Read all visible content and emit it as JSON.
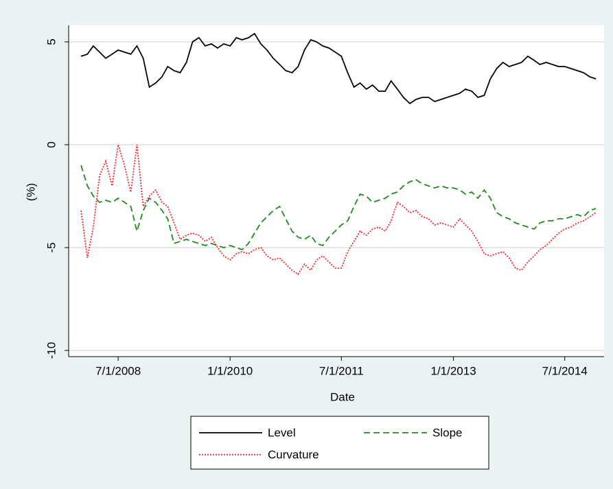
{
  "chart_data": {
    "type": "line",
    "xlabel": "Date",
    "ylabel": "(%)",
    "x": [
      "1/1/2008",
      "2/1/2008",
      "3/1/2008",
      "4/1/2008",
      "5/1/2008",
      "6/1/2008",
      "7/1/2008",
      "8/1/2008",
      "9/1/2008",
      "10/1/2008",
      "11/1/2008",
      "12/1/2008",
      "1/1/2009",
      "2/1/2009",
      "3/1/2009",
      "4/1/2009",
      "5/1/2009",
      "6/1/2009",
      "7/1/2009",
      "8/1/2009",
      "9/1/2009",
      "10/1/2009",
      "11/1/2009",
      "12/1/2009",
      "1/1/2010",
      "2/1/2010",
      "3/1/2010",
      "4/1/2010",
      "5/1/2010",
      "6/1/2010",
      "7/1/2010",
      "8/1/2010",
      "9/1/2010",
      "10/1/2010",
      "11/1/2010",
      "12/1/2010",
      "1/1/2011",
      "2/1/2011",
      "3/1/2011",
      "4/1/2011",
      "5/1/2011",
      "6/1/2011",
      "7/1/2011",
      "8/1/2011",
      "9/1/2011",
      "10/1/2011",
      "11/1/2011",
      "12/1/2011",
      "1/1/2012",
      "2/1/2012",
      "3/1/2012",
      "4/1/2012",
      "5/1/2012",
      "6/1/2012",
      "7/1/2012",
      "8/1/2012",
      "9/1/2012",
      "10/1/2012",
      "11/1/2012",
      "12/1/2012",
      "1/1/2013",
      "2/1/2013",
      "3/1/2013",
      "4/1/2013",
      "5/1/2013",
      "6/1/2013",
      "7/1/2013",
      "8/1/2013",
      "9/1/2013",
      "10/1/2013",
      "11/1/2013",
      "12/1/2013",
      "1/1/2014",
      "2/1/2014",
      "3/1/2014",
      "4/1/2014",
      "5/1/2014",
      "6/1/2014",
      "7/1/2014",
      "8/1/2014",
      "9/1/2014",
      "10/1/2014",
      "11/1/2014",
      "12/1/2014"
    ],
    "series": [
      {
        "name": "Level",
        "color": "#000000",
        "dash": "solid",
        "values": [
          4.3,
          4.4,
          4.8,
          4.5,
          4.2,
          4.4,
          4.6,
          4.5,
          4.4,
          4.8,
          4.2,
          2.8,
          3.0,
          3.3,
          3.8,
          3.6,
          3.5,
          4.0,
          5.0,
          5.2,
          4.8,
          4.9,
          4.7,
          4.9,
          4.8,
          5.2,
          5.1,
          5.2,
          5.4,
          4.9,
          4.6,
          4.2,
          3.9,
          3.6,
          3.5,
          3.8,
          4.6,
          5.1,
          5.0,
          4.8,
          4.7,
          4.5,
          4.3,
          3.5,
          2.8,
          3.0,
          2.7,
          2.9,
          2.6,
          2.6,
          3.1,
          2.7,
          2.3,
          2.0,
          2.2,
          2.3,
          2.3,
          2.1,
          2.2,
          2.3,
          2.4,
          2.5,
          2.7,
          2.6,
          2.3,
          2.4,
          3.2,
          3.7,
          4.0,
          3.8,
          3.9,
          4.0,
          4.3,
          4.1,
          3.9,
          4.0,
          3.9,
          3.8,
          3.8,
          3.7,
          3.6,
          3.5,
          3.3,
          3.2
        ]
      },
      {
        "name": "Slope",
        "color": "#1e8a1e",
        "dash": "dashed",
        "values": [
          -1.0,
          -2.0,
          -2.5,
          -2.8,
          -2.7,
          -2.8,
          -2.6,
          -2.8,
          -3.0,
          -4.2,
          -3.2,
          -2.6,
          -2.8,
          -3.2,
          -3.6,
          -4.8,
          -4.7,
          -4.6,
          -4.7,
          -4.8,
          -4.9,
          -4.8,
          -4.9,
          -5.0,
          -4.9,
          -5.0,
          -5.1,
          -4.8,
          -4.3,
          -3.8,
          -3.5,
          -3.2,
          -3.0,
          -3.6,
          -4.2,
          -4.5,
          -4.6,
          -4.4,
          -4.8,
          -4.9,
          -4.5,
          -4.2,
          -3.9,
          -3.7,
          -3.0,
          -2.4,
          -2.5,
          -2.8,
          -2.7,
          -2.6,
          -2.4,
          -2.3,
          -2.0,
          -1.8,
          -1.7,
          -1.9,
          -2.0,
          -2.1,
          -2.0,
          -2.1,
          -2.1,
          -2.2,
          -2.4,
          -2.3,
          -2.6,
          -2.2,
          -2.6,
          -3.3,
          -3.5,
          -3.6,
          -3.8,
          -3.9,
          -4.0,
          -4.1,
          -3.8,
          -3.7,
          -3.7,
          -3.6,
          -3.6,
          -3.5,
          -3.4,
          -3.5,
          -3.2,
          -3.1
        ]
      },
      {
        "name": "Curvature",
        "color": "#ff2020",
        "dash": "dotted",
        "values": [
          -3.2,
          -5.5,
          -4.0,
          -1.5,
          -0.8,
          -2.0,
          0.0,
          -1.0,
          -2.3,
          0.0,
          -3.0,
          -2.5,
          -2.2,
          -2.8,
          -3.0,
          -3.8,
          -4.6,
          -4.4,
          -4.3,
          -4.4,
          -4.7,
          -4.5,
          -5.0,
          -5.4,
          -5.6,
          -5.3,
          -5.2,
          -5.3,
          -5.1,
          -5.0,
          -5.4,
          -5.6,
          -5.5,
          -5.8,
          -6.1,
          -6.3,
          -5.8,
          -6.1,
          -5.6,
          -5.4,
          -5.7,
          -6.0,
          -6.0,
          -5.2,
          -4.7,
          -4.2,
          -4.4,
          -4.1,
          -4.0,
          -4.2,
          -3.7,
          -2.8,
          -3.0,
          -3.3,
          -3.2,
          -3.5,
          -3.6,
          -3.9,
          -3.8,
          -3.9,
          -4.0,
          -3.6,
          -3.9,
          -4.2,
          -4.7,
          -5.3,
          -5.4,
          -5.3,
          -5.2,
          -5.5,
          -6.0,
          -6.1,
          -5.7,
          -5.4,
          -5.1,
          -4.9,
          -4.6,
          -4.3,
          -4.1,
          -4.0,
          -3.8,
          -3.7,
          -3.5,
          -3.3
        ]
      }
    ],
    "xlim": [
      "11/1/2007",
      "1/10/2015"
    ],
    "xticks": [
      "7/1/2008",
      "1/1/2010",
      "7/1/2011",
      "1/1/2013",
      "7/1/2014"
    ],
    "ylim": [
      -10.3,
      5.8
    ],
    "yticks": [
      -10,
      -5,
      0,
      5
    ],
    "grid": true,
    "legend": "bottom"
  }
}
